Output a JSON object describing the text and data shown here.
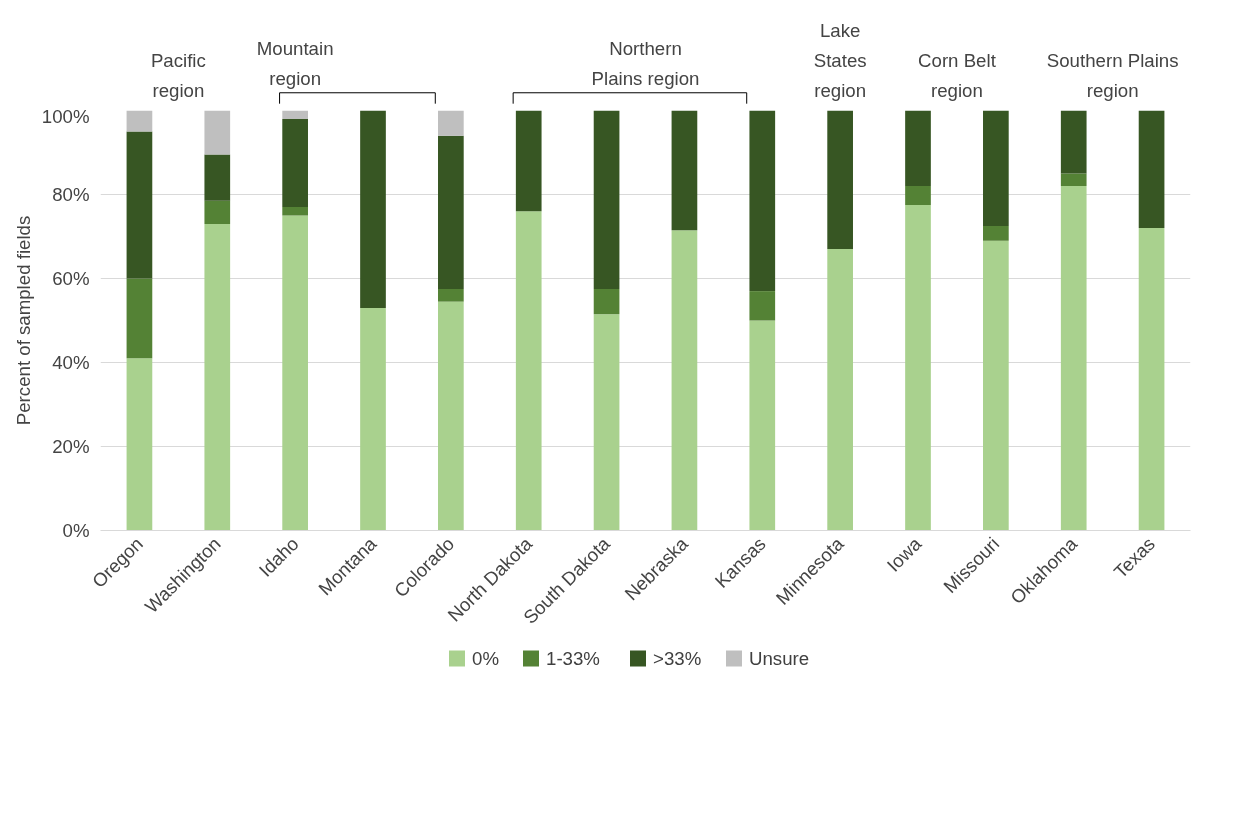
{
  "chart_data": {
    "type": "bar",
    "stacked": true,
    "ylabel": "Percent of sampled fields",
    "categories": [
      "Oregon",
      "Washington",
      "Idaho",
      "Montana",
      "Colorado",
      "North Dakota",
      "South Dakota",
      "Nebraska",
      "Kansas",
      "Minnesota",
      "Iowa",
      "Missouri",
      "Oklahoma",
      "Texas"
    ],
    "series": [
      {
        "name": "0%",
        "color": "#a9d18e",
        "values": [
          41,
          73,
          75,
          53,
          54.5,
          76,
          51.5,
          71.5,
          50,
          67,
          77.5,
          69,
          82,
          72
        ]
      },
      {
        "name": "1-33%",
        "color": "#548235",
        "values": [
          19,
          5.5,
          2,
          0,
          3,
          0,
          6,
          0,
          7,
          0,
          4.5,
          3.5,
          3,
          0
        ]
      },
      {
        "name": ">33%",
        "color": "#375623",
        "values": [
          35,
          11,
          21,
          47,
          36.5,
          24,
          42.5,
          28.5,
          43,
          33,
          18,
          27.5,
          15,
          28
        ]
      },
      {
        "name": "Unsure",
        "color": "#bfbfbf",
        "values": [
          5,
          10.5,
          2,
          0,
          6,
          0,
          0,
          0,
          0,
          0,
          0,
          0,
          0,
          0
        ]
      }
    ],
    "ylim": [
      0,
      100
    ],
    "yticks": [
      {
        "value": 0,
        "label": "0%"
      },
      {
        "value": 20,
        "label": "20%"
      },
      {
        "value": 40,
        "label": "40%"
      },
      {
        "value": 60,
        "label": "60%"
      },
      {
        "value": 80,
        "label": "80%"
      },
      {
        "value": 100,
        "label": "100%"
      }
    ],
    "grid": "y",
    "legend": "bottom",
    "annotations": [
      "Pacific region",
      "Mountain region",
      "Northern Plains region",
      "Lake States region",
      "Corn Belt region",
      "Southern Plains region"
    ]
  }
}
